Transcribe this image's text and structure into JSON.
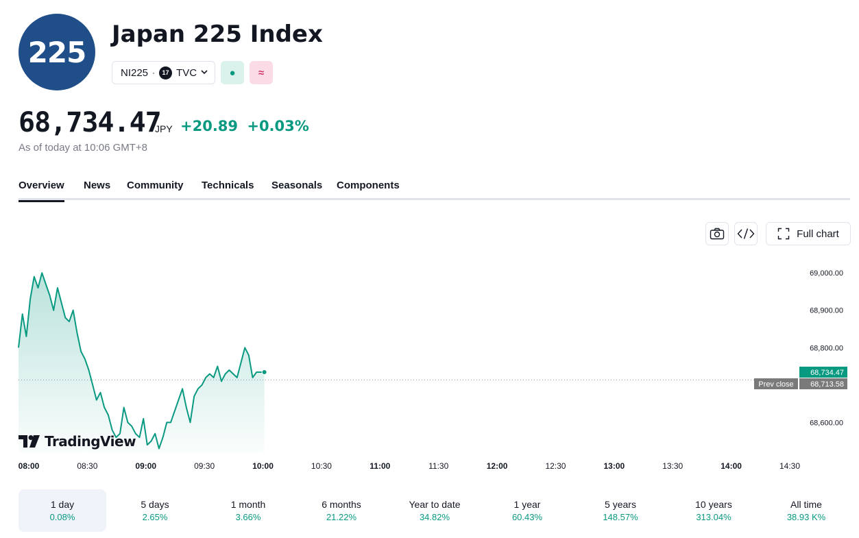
{
  "header": {
    "logo_text": "225",
    "title": "Japan 225 Index",
    "symbol": "NI225",
    "separator": "·",
    "exchange_badge": "17",
    "exchange": "TVC",
    "market_status_icon": "●",
    "related_icon": "≈"
  },
  "quote": {
    "price": "68,734.47",
    "currency": "JPY",
    "change": "+20.89",
    "change_pct": "+0.03%",
    "as_of": "As of today at 10:06 GMT+8"
  },
  "tabs": [
    "Overview",
    "News",
    "Community",
    "Technicals",
    "Seasonals",
    "Components"
  ],
  "toolbar": {
    "full_chart_label": "Full chart"
  },
  "brand": {
    "name": "TradingView"
  },
  "chart_data": {
    "type": "area",
    "x_ticks": [
      "08:00",
      "08:30",
      "09:00",
      "09:30",
      "10:00",
      "10:30",
      "11:00",
      "11:30",
      "12:00",
      "12:30",
      "13:00",
      "13:30",
      "14:00",
      "14:30"
    ],
    "bold_ticks": [
      "08:00",
      "09:00",
      "10:00",
      "11:00",
      "12:00",
      "13:00",
      "14:00"
    ],
    "y_ticks": [
      "69,000.00",
      "68,900.00",
      "68,800.00",
      "68,600.00"
    ],
    "ylim": [
      68520,
      69070
    ],
    "prev_close_label": "Prev close",
    "prev_close_value": "68,713.58",
    "prev_close": 68713.58,
    "last_label": "68,734.47",
    "last_value": 68734.47,
    "series": [
      {
        "x": [
          "08:00",
          "08:02",
          "08:04",
          "08:06",
          "08:08",
          "08:10",
          "08:12",
          "08:14",
          "08:16",
          "08:18",
          "08:20",
          "08:22",
          "08:24",
          "08:26",
          "08:28",
          "08:30",
          "08:32",
          "08:34",
          "08:36",
          "08:38",
          "08:40",
          "08:42",
          "08:44",
          "08:46",
          "08:48",
          "08:50",
          "08:52",
          "08:54",
          "08:56",
          "08:58",
          "09:00",
          "09:02",
          "09:04",
          "09:06",
          "09:08",
          "09:10",
          "09:12",
          "09:14",
          "09:16",
          "09:18",
          "09:20",
          "09:22",
          "09:24",
          "09:26",
          "09:28",
          "09:30",
          "09:32",
          "09:34",
          "09:36",
          "09:38",
          "09:40",
          "09:42",
          "09:44",
          "09:46",
          "09:48",
          "09:50",
          "09:52",
          "09:54",
          "09:56",
          "09:58",
          "10:00",
          "10:02",
          "10:04",
          "10:06"
        ],
        "values": [
          68800,
          68890,
          68830,
          68930,
          68990,
          68960,
          69000,
          68970,
          68940,
          68900,
          68960,
          68920,
          68880,
          68870,
          68900,
          68840,
          68790,
          68770,
          68740,
          68700,
          68660,
          68680,
          68640,
          68620,
          68580,
          68560,
          68570,
          68640,
          68600,
          68590,
          68570,
          68560,
          68610,
          68540,
          68550,
          68570,
          68530,
          68560,
          68600,
          68600,
          68630,
          68660,
          68690,
          68640,
          68600,
          68670,
          68690,
          68700,
          68720,
          68730,
          68720,
          68750,
          68710,
          68730,
          68740,
          68730,
          68720,
          68760,
          68800,
          68780,
          68720,
          68734.47,
          68734.47,
          68734.47
        ]
      }
    ]
  },
  "periods": [
    {
      "label": "1 day",
      "value": "0.08%"
    },
    {
      "label": "5 days",
      "value": "2.65%"
    },
    {
      "label": "1 month",
      "value": "3.66%"
    },
    {
      "label": "6 months",
      "value": "21.22%"
    },
    {
      "label": "Year to date",
      "value": "34.82%"
    },
    {
      "label": "1 year",
      "value": "60.43%"
    },
    {
      "label": "5 years",
      "value": "148.57%"
    },
    {
      "label": "10 years",
      "value": "313.04%"
    },
    {
      "label": "All time",
      "value": "38.93 K%"
    }
  ],
  "colors": {
    "accent_green": "#089981",
    "logo_blue": "#1f4e89",
    "prev_close_gray": "#7a7a7a"
  }
}
